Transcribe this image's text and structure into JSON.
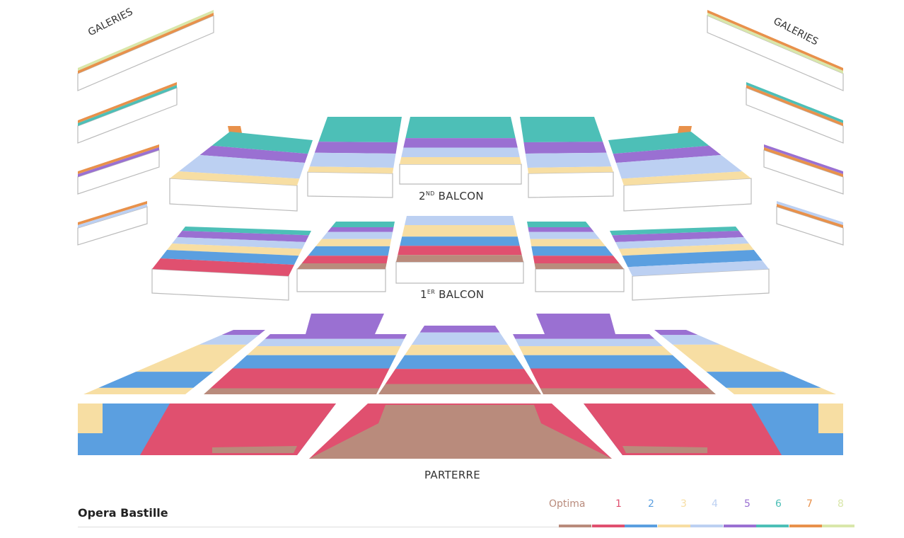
{
  "title": "Opera Bastille",
  "labels": {
    "galeries_left": "GALERIES",
    "galeries_right": "GALERIES",
    "balcon2_num": "2",
    "balcon2_sup": "ND",
    "balcon2_word": "BALCON",
    "balcon1_num": "1",
    "balcon1_sup": "ER",
    "balcon1_word": "BALCON",
    "parterre": "PARTERRE"
  },
  "legend": [
    {
      "key": "optima",
      "label": "Optima",
      "color": "#b98b7c"
    },
    {
      "key": "1",
      "label": "1",
      "color": "#e0506f"
    },
    {
      "key": "2",
      "label": "2",
      "color": "#5b9fe0"
    },
    {
      "key": "3",
      "label": "3",
      "color": "#f7dea3"
    },
    {
      "key": "4",
      "label": "4",
      "color": "#bcd0f2"
    },
    {
      "key": "5",
      "label": "5",
      "color": "#9a70d2"
    },
    {
      "key": "6",
      "label": "6",
      "color": "#4dbfb7"
    },
    {
      "key": "7",
      "label": "7",
      "color": "#e8914b"
    },
    {
      "key": "8",
      "label": "8",
      "color": "#d9e7aa"
    }
  ]
}
